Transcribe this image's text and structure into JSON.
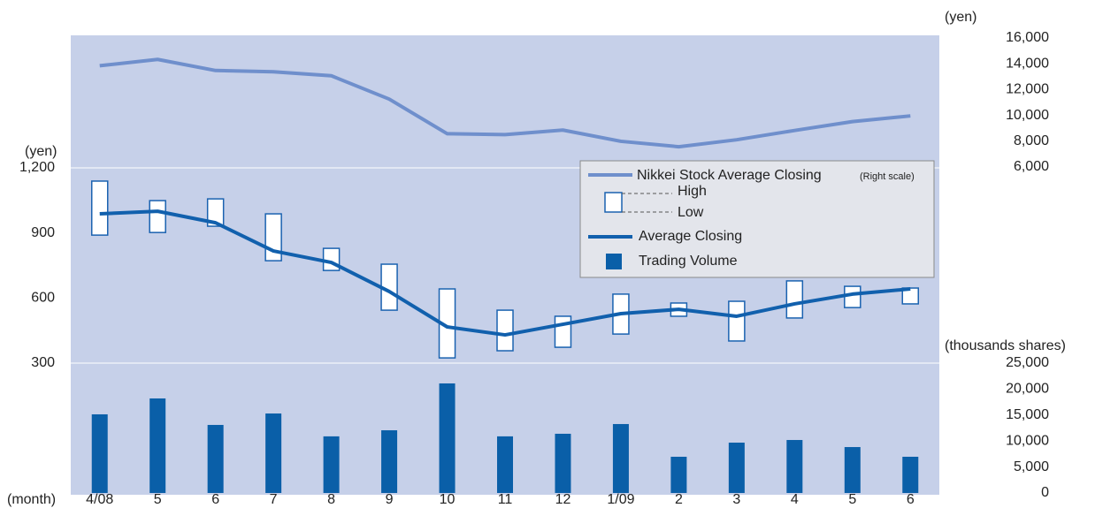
{
  "chart_data": {
    "type": "combo",
    "x_label": "(month)",
    "y_label": "(yen)",
    "y2_label": "(yen)",
    "y3_label": "(thousands shares)",
    "categories": [
      "4/08",
      "5",
      "6",
      "7",
      "8",
      "9",
      "10",
      "11",
      "12",
      "1/09",
      "2",
      "3",
      "4",
      "5",
      "6"
    ],
    "ylim": [
      300,
      1200
    ],
    "yticks": [
      300,
      600,
      900,
      {
        "value": 1200,
        "label": "1,200"
      }
    ],
    "y2lim": [
      6000,
      16000
    ],
    "y2ticks": [
      {
        "value": 6000,
        "label": "6,000"
      },
      {
        "value": 8000,
        "label": "8,000"
      },
      {
        "value": 10000,
        "label": "10,000"
      },
      {
        "value": 12000,
        "label": "12,000"
      },
      {
        "value": 14000,
        "label": "14,000"
      },
      {
        "value": 16000,
        "label": "16,000"
      }
    ],
    "y3lim": [
      0,
      25000
    ],
    "y3ticks": [
      0,
      {
        "value": 5000,
        "label": "5,000"
      },
      {
        "value": 10000,
        "label": "10,000"
      },
      {
        "value": 15000,
        "label": "15,000"
      },
      {
        "value": 20000,
        "label": "20,000"
      },
      {
        "value": 25000,
        "label": "25,000"
      }
    ],
    "series": [
      {
        "name": "Nikkei Stock Average Closing",
        "note": "(Right scale)",
        "type": "line",
        "axis": "y2",
        "color": "#6f8fcc",
        "values": [
          13850,
          14340,
          13480,
          13380,
          13070,
          11260,
          8580,
          8510,
          8860,
          7990,
          7570,
          8110,
          8830,
          9520,
          9960
        ]
      },
      {
        "high_name": "High",
        "low_name": "Low",
        "type": "candlestick",
        "axis": "y",
        "color": "#1a62b0",
        "high": [
          1139,
          1049,
          1057,
          988,
          829,
          756,
          642,
          544,
          516,
          618,
          577,
          585,
          679,
          654,
          646
        ],
        "low": [
          890,
          902,
          931,
          772,
          727,
          544,
          324,
          357,
          373,
          434,
          516,
          402,
          508,
          556,
          573
        ]
      },
      {
        "name": "Average Closing",
        "type": "line",
        "axis": "y",
        "color": "#1160ad",
        "values": [
          988,
          1000,
          947,
          817,
          764,
          630,
          467,
          430,
          479,
          528,
          548,
          516,
          573,
          618,
          642
        ]
      },
      {
        "name": "Trading Volume",
        "type": "bar",
        "axis": "y3",
        "color": "#0a5fa8",
        "values": [
          15140,
          18200,
          13100,
          15300,
          10900,
          12070,
          21090,
          10900,
          11400,
          13270,
          6970,
          9690,
          10200,
          8840,
          6970
        ]
      }
    ]
  }
}
